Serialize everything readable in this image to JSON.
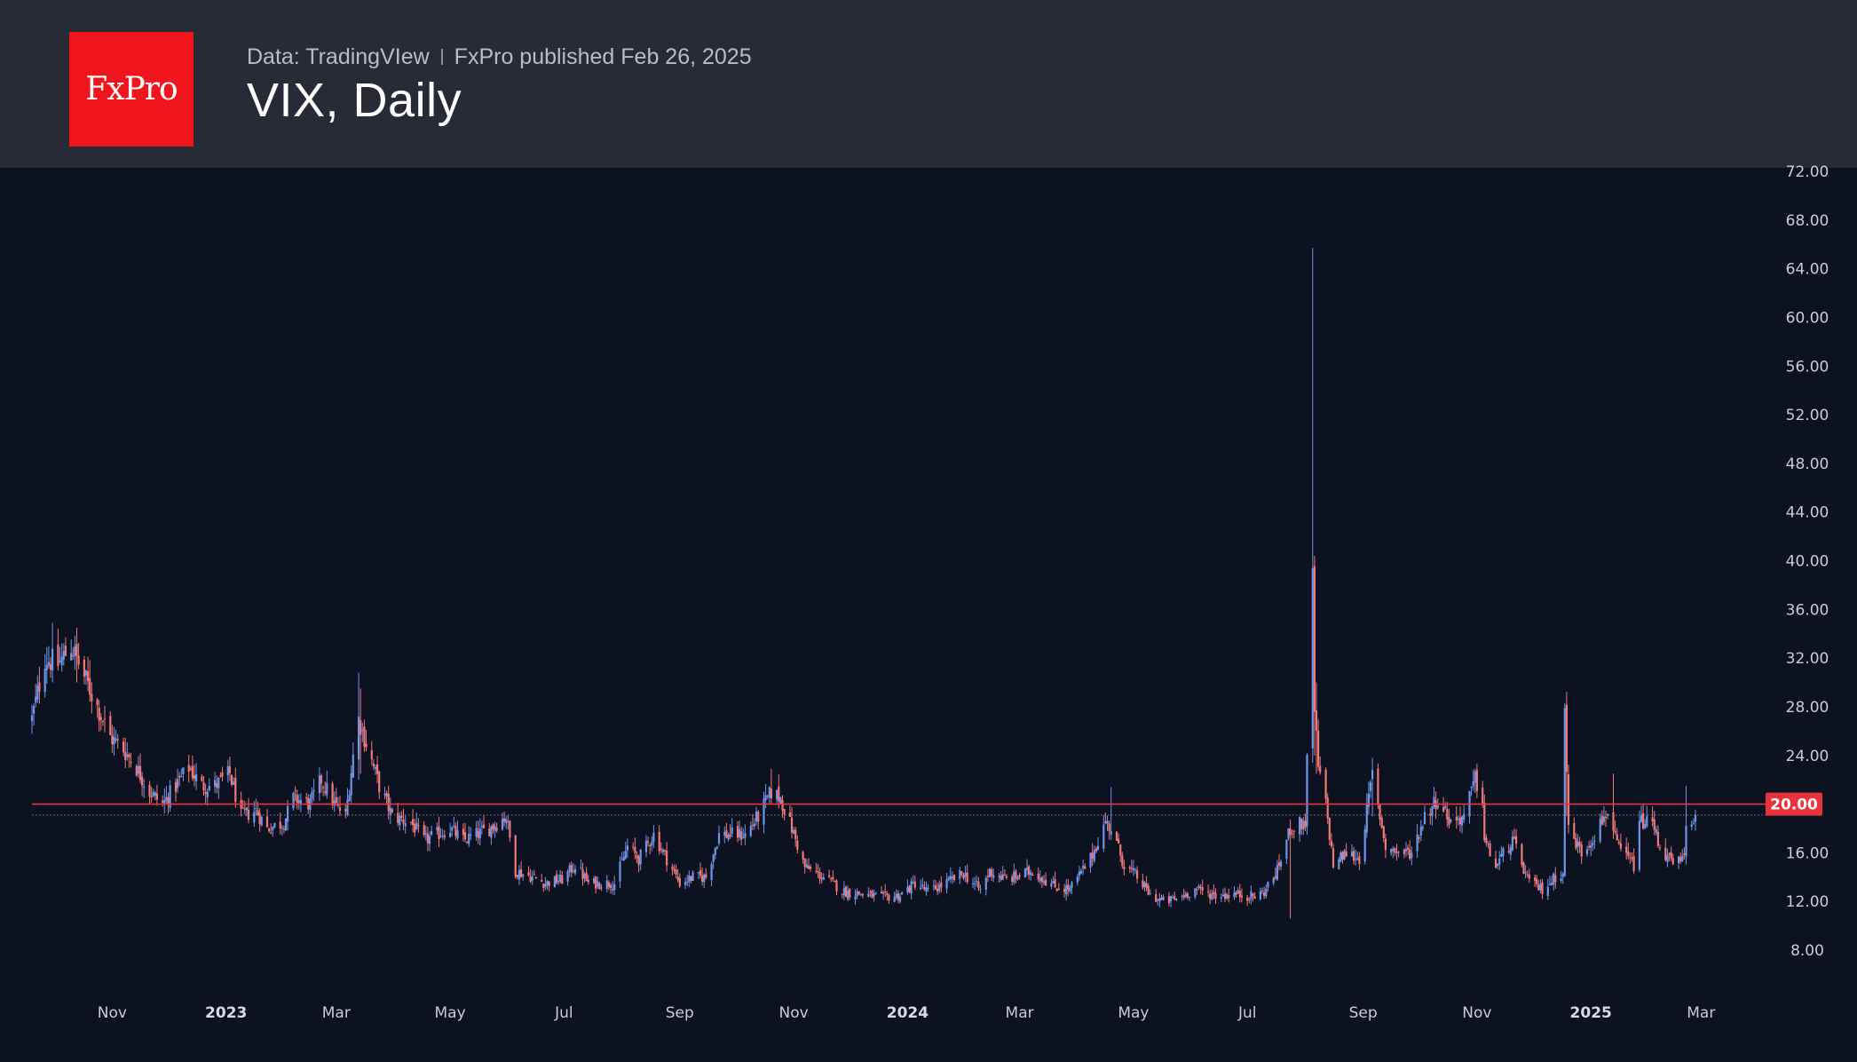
{
  "header": {
    "logo_text": "FxPro",
    "source": "Data: TradingVIew",
    "publisher": "FxPro published Feb 26, 2025",
    "title": "VIX, Daily"
  },
  "colors": {
    "background": "#0d1220",
    "header_bg": "#282b36",
    "logo_bg": "#f0141c",
    "up_candle": "#6e95e8",
    "down_candle": "#f07878",
    "level_line": "#e8323c"
  },
  "chart_data": {
    "type": "candlestick",
    "title": "VIX, Daily",
    "x_start": "2022-09-19",
    "x_end": "2025-02-26",
    "ylim": [
      6.5,
      72
    ],
    "y_ticks": [
      "72.00",
      "68.00",
      "64.00",
      "60.00",
      "56.00",
      "52.00",
      "48.00",
      "44.00",
      "40.00",
      "36.00",
      "32.00",
      "28.00",
      "24.00",
      "20.00",
      "16.00",
      "12.00",
      "8.00"
    ],
    "x_ticks": [
      {
        "label": "Nov",
        "date": "2022-11-01",
        "bold": false
      },
      {
        "label": "2023",
        "date": "2023-01-01",
        "bold": true
      },
      {
        "label": "Mar",
        "date": "2023-03-01",
        "bold": false
      },
      {
        "label": "May",
        "date": "2023-05-01",
        "bold": false
      },
      {
        "label": "Jul",
        "date": "2023-07-01",
        "bold": false
      },
      {
        "label": "Sep",
        "date": "2023-09-01",
        "bold": false
      },
      {
        "label": "Nov",
        "date": "2023-11-01",
        "bold": false
      },
      {
        "label": "2024",
        "date": "2024-01-01",
        "bold": true
      },
      {
        "label": "Mar",
        "date": "2024-03-01",
        "bold": false
      },
      {
        "label": "May",
        "date": "2024-05-01",
        "bold": false
      },
      {
        "label": "Jul",
        "date": "2024-07-01",
        "bold": false
      },
      {
        "label": "Sep",
        "date": "2024-09-01",
        "bold": false
      },
      {
        "label": "Nov",
        "date": "2024-11-01",
        "bold": false
      },
      {
        "label": "2025",
        "date": "2025-01-01",
        "bold": true
      },
      {
        "label": "Mar",
        "date": "2025-03-01",
        "bold": false
      }
    ],
    "horizontal_level": {
      "value": 20.0,
      "label": "20.00"
    },
    "last_close": 19.1,
    "close_anchors": [
      [
        "2022-09-19",
        27.0
      ],
      [
        "2022-09-26",
        32.0
      ],
      [
        "2022-10-03",
        31.5
      ],
      [
        "2022-10-10",
        33.0
      ],
      [
        "2022-10-17",
        30.5
      ],
      [
        "2022-10-24",
        28.0
      ],
      [
        "2022-10-31",
        25.5
      ],
      [
        "2022-11-07",
        24.5
      ],
      [
        "2022-11-14",
        23.0
      ],
      [
        "2022-11-21",
        21.0
      ],
      [
        "2022-11-28",
        20.0
      ],
      [
        "2022-12-05",
        21.5
      ],
      [
        "2022-12-12",
        23.0
      ],
      [
        "2022-12-19",
        21.5
      ],
      [
        "2022-12-26",
        21.5
      ],
      [
        "2023-01-03",
        22.5
      ],
      [
        "2023-01-09",
        19.0
      ],
      [
        "2023-01-17",
        19.5
      ],
      [
        "2023-01-23",
        18.0
      ],
      [
        "2023-02-01",
        18.5
      ],
      [
        "2023-02-06",
        20.5
      ],
      [
        "2023-02-15",
        20.0
      ],
      [
        "2023-02-21",
        22.0
      ],
      [
        "2023-02-28",
        20.0
      ],
      [
        "2023-03-06",
        19.0
      ],
      [
        "2023-03-10",
        24.0
      ],
      [
        "2023-03-13",
        27.0
      ],
      [
        "2023-03-17",
        25.0
      ],
      [
        "2023-03-24",
        21.5
      ],
      [
        "2023-03-31",
        19.0
      ],
      [
        "2023-04-10",
        18.5
      ],
      [
        "2023-04-17",
        17.0
      ],
      [
        "2023-04-24",
        17.5
      ],
      [
        "2023-05-01",
        18.0
      ],
      [
        "2023-05-08",
        17.0
      ],
      [
        "2023-05-15",
        17.5
      ],
      [
        "2023-05-22",
        18.0
      ],
      [
        "2023-05-31",
        19.0
      ],
      [
        "2023-06-05",
        14.5
      ],
      [
        "2023-06-14",
        14.0
      ],
      [
        "2023-06-21",
        13.5
      ],
      [
        "2023-06-30",
        13.8
      ],
      [
        "2023-07-07",
        15.0
      ],
      [
        "2023-07-14",
        13.5
      ],
      [
        "2023-07-28",
        13.5
      ],
      [
        "2023-08-04",
        16.5
      ],
      [
        "2023-08-10",
        15.5
      ],
      [
        "2023-08-18",
        17.5
      ],
      [
        "2023-08-25",
        15.5
      ],
      [
        "2023-09-01",
        13.5
      ],
      [
        "2023-09-08",
        14.0
      ],
      [
        "2023-09-15",
        14.0
      ],
      [
        "2023-09-22",
        17.5
      ],
      [
        "2023-09-29",
        17.5
      ],
      [
        "2023-10-06",
        17.5
      ],
      [
        "2023-10-13",
        19.0
      ],
      [
        "2023-10-20",
        21.0
      ],
      [
        "2023-10-25",
        20.5
      ],
      [
        "2023-10-31",
        18.0
      ],
      [
        "2023-11-07",
        14.8
      ],
      [
        "2023-11-17",
        14.0
      ],
      [
        "2023-11-28",
        12.8
      ],
      [
        "2023-12-08",
        12.6
      ],
      [
        "2023-12-18",
        12.3
      ],
      [
        "2023-12-28",
        12.5
      ],
      [
        "2024-01-05",
        13.5
      ],
      [
        "2024-01-12",
        12.8
      ],
      [
        "2024-01-19",
        13.3
      ],
      [
        "2024-01-31",
        14.3
      ],
      [
        "2024-02-09",
        12.9
      ],
      [
        "2024-02-14",
        14.5
      ],
      [
        "2024-02-23",
        13.8
      ],
      [
        "2024-03-08",
        14.5
      ],
      [
        "2024-03-20",
        13.2
      ],
      [
        "2024-03-28",
        13.0
      ],
      [
        "2024-04-08",
        15.5
      ],
      [
        "2024-04-16",
        18.5
      ],
      [
        "2024-04-19",
        18.0
      ],
      [
        "2024-04-26",
        15.0
      ],
      [
        "2024-05-03",
        14.0
      ],
      [
        "2024-05-10",
        12.5
      ],
      [
        "2024-05-17",
        12.0
      ],
      [
        "2024-05-24",
        12.2
      ],
      [
        "2024-06-03",
        13.0
      ],
      [
        "2024-06-14",
        12.5
      ],
      [
        "2024-06-24",
        12.6
      ],
      [
        "2024-07-05",
        12.4
      ],
      [
        "2024-07-10",
        12.8
      ],
      [
        "2024-07-17",
        14.5
      ],
      [
        "2024-07-24",
        18.0
      ],
      [
        "2024-08-01",
        18.5
      ],
      [
        "2024-08-02",
        23.4
      ],
      [
        "2024-08-05",
        38.5
      ],
      [
        "2024-08-06",
        27.7
      ],
      [
        "2024-08-08",
        23.0
      ],
      [
        "2024-08-12",
        20.0
      ],
      [
        "2024-08-16",
        15.0
      ],
      [
        "2024-08-23",
        16.0
      ],
      [
        "2024-08-30",
        15.5
      ],
      [
        "2024-09-06",
        22.4
      ],
      [
        "2024-09-13",
        16.5
      ],
      [
        "2024-09-20",
        16.0
      ],
      [
        "2024-09-27",
        16.0
      ],
      [
        "2024-10-04",
        19.0
      ],
      [
        "2024-10-11",
        20.5
      ],
      [
        "2024-10-18",
        18.5
      ],
      [
        "2024-10-25",
        19.0
      ],
      [
        "2024-10-31",
        22.0
      ],
      [
        "2024-11-04",
        20.5
      ],
      [
        "2024-11-05",
        17.0
      ],
      [
        "2024-11-11",
        14.9
      ],
      [
        "2024-11-20",
        17.0
      ],
      [
        "2024-11-29",
        13.5
      ],
      [
        "2024-12-06",
        13.0
      ],
      [
        "2024-12-13",
        14.0
      ],
      [
        "2024-12-17",
        14.5
      ],
      [
        "2024-12-18",
        27.5
      ],
      [
        "2024-12-20",
        18.0
      ],
      [
        "2024-12-27",
        16.0
      ],
      [
        "2025-01-03",
        17.5
      ],
      [
        "2025-01-10",
        19.5
      ],
      [
        "2025-01-15",
        16.5
      ],
      [
        "2025-01-24",
        15.0
      ],
      [
        "2025-01-27",
        18.5
      ],
      [
        "2025-02-03",
        18.5
      ],
      [
        "2025-02-07",
        16.5
      ],
      [
        "2025-02-14",
        15.0
      ],
      [
        "2025-02-20",
        15.5
      ],
      [
        "2025-02-21",
        18.2
      ],
      [
        "2025-02-24",
        18.9
      ],
      [
        "2025-02-26",
        19.1
      ]
    ],
    "spikes": [
      [
        "2024-08-05",
        65.7,
        23.4
      ],
      [
        "2024-08-06",
        34.7,
        24.0
      ],
      [
        "2024-08-07",
        30.0,
        22.5
      ],
      [
        "2024-12-18",
        28.3,
        15.5
      ],
      [
        "2024-12-19",
        24.0,
        19.0
      ],
      [
        "2024-04-19",
        21.4,
        17.5
      ],
      [
        "2025-01-13",
        22.5,
        19.0
      ],
      [
        "2025-02-21",
        21.5,
        17.0
      ],
      [
        "2023-03-13",
        30.8,
        22.0
      ],
      [
        "2023-03-14",
        29.5,
        22.5
      ],
      [
        "2022-10-13",
        34.5,
        30.0
      ],
      [
        "2022-09-30",
        34.9,
        30.0
      ],
      [
        "2023-10-20",
        22.9,
        20.5
      ],
      [
        "2024-07-24",
        18.5,
        10.6
      ],
      [
        "2024-09-06",
        23.8,
        19.0
      ],
      [
        "2024-11-01",
        23.3,
        20.5
      ]
    ]
  }
}
